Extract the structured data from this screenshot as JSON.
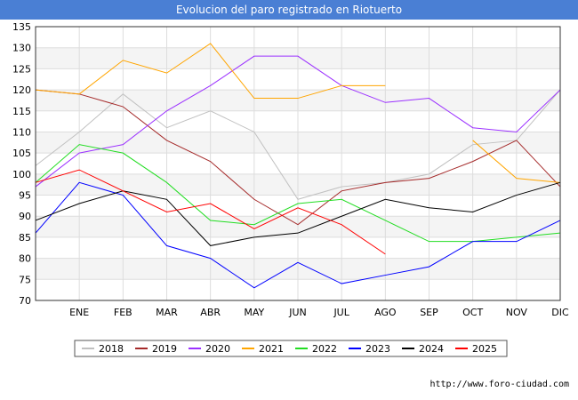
{
  "title": "Evolucion del paro registrado en Riotuerto",
  "footer": "http://www.foro-ciudad.com",
  "chart_data": {
    "type": "line",
    "title": "Evolucion del paro registrado en Riotuerto",
    "categories": [
      "DIC",
      "ENE",
      "FEB",
      "MAR",
      "ABR",
      "MAY",
      "JUN",
      "JUL",
      "AGO",
      "SEP",
      "OCT",
      "NOV",
      "DIC"
    ],
    "x_tick_labels": [
      "",
      "ENE",
      "FEB",
      "MAR",
      "ABR",
      "MAY",
      "JUN",
      "JUL",
      "AGO",
      "SEP",
      "OCT",
      "NOV",
      "DIC"
    ],
    "ylim": [
      70,
      135
    ],
    "yticks": [
      70,
      75,
      80,
      85,
      90,
      95,
      100,
      105,
      110,
      115,
      120,
      125,
      130,
      135
    ],
    "grid": true,
    "legend_position": "bottom",
    "series": [
      {
        "name": "2018",
        "color": "#c0c0c0",
        "values": [
          102,
          110,
          119,
          111,
          115,
          110,
          94,
          97,
          98,
          100,
          107,
          108,
          120
        ]
      },
      {
        "name": "2019",
        "color": "#a52a2a",
        "values": [
          120,
          119,
          116,
          108,
          103,
          94,
          88,
          96,
          98,
          99,
          103,
          108,
          97
        ]
      },
      {
        "name": "2020",
        "color": "#9b30ff",
        "values": [
          97,
          105,
          107,
          115,
          121,
          128,
          128,
          121,
          117,
          118,
          111,
          110,
          120
        ]
      },
      {
        "name": "2021",
        "color": "#ffa500",
        "values": [
          120,
          119,
          127,
          124,
          131,
          118,
          118,
          121,
          121,
          null,
          108,
          99,
          98
        ]
      },
      {
        "name": "2022",
        "color": "#22dd22",
        "values": [
          98,
          107,
          105,
          98,
          89,
          88,
          93,
          94,
          89,
          84,
          84,
          85,
          86
        ]
      },
      {
        "name": "2023",
        "color": "#0000ff",
        "values": [
          86,
          98,
          95,
          83,
          80,
          73,
          79,
          74,
          76,
          78,
          84,
          84,
          89
        ]
      },
      {
        "name": "2024",
        "color": "#000000",
        "values": [
          89,
          93,
          96,
          94,
          83,
          85,
          86,
          90,
          94,
          92,
          91,
          95,
          98
        ]
      },
      {
        "name": "2025",
        "color": "#ff0000",
        "values": [
          98,
          101,
          96,
          91,
          93,
          87,
          92,
          88,
          81,
          null,
          null,
          null,
          null
        ]
      }
    ]
  }
}
